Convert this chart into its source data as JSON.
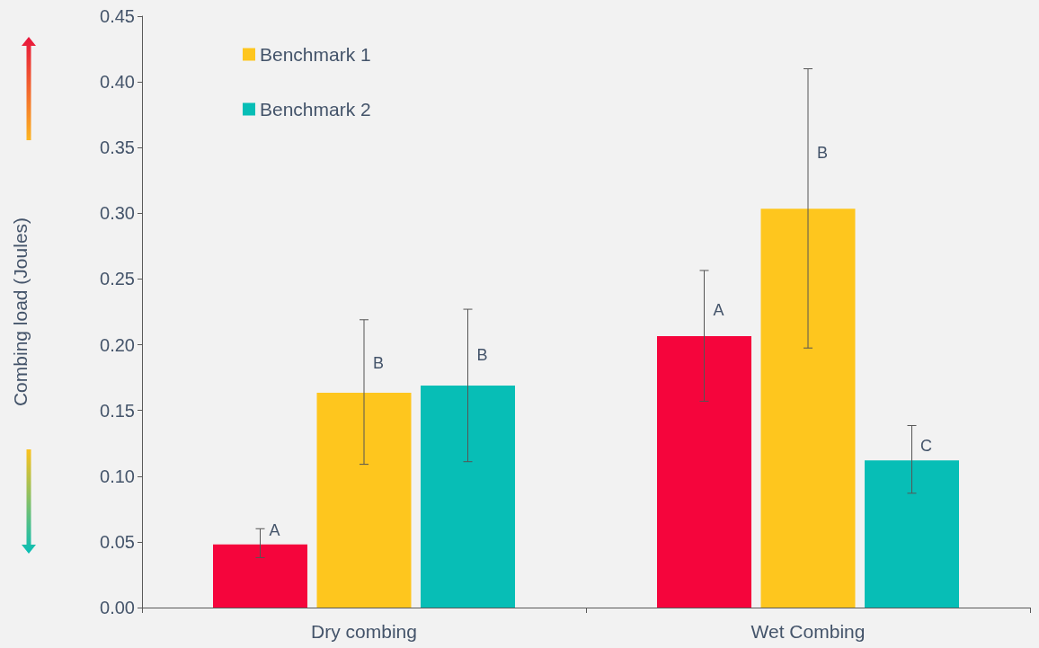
{
  "chart_data": {
    "type": "bar",
    "ylabel": "Combing load (Joules)",
    "categories": [
      "Dry combing",
      "Wet Combing"
    ],
    "series": [
      {
        "color": "#f5053c",
        "values": [
          0.048,
          0.2065
        ],
        "errors": [
          [
            0.038,
            0.06
          ],
          [
            0.157,
            0.2565
          ]
        ]
      },
      {
        "name": "Benchmark 1",
        "color": "#fec61e",
        "values": [
          0.1635,
          0.3035
        ],
        "errors": [
          [
            0.109,
            0.219
          ],
          [
            0.1975,
            0.41
          ]
        ]
      },
      {
        "name": "Benchmark 2",
        "color": "#07beb6",
        "values": [
          0.169,
          0.112
        ],
        "errors": [
          [
            0.111,
            0.227
          ],
          [
            0.087,
            0.1385
          ]
        ]
      }
    ],
    "ylim": [
      0,
      0.45
    ],
    "yticks": [
      {
        "value": 0,
        "label": "0.00"
      },
      {
        "value": 0.05,
        "label": "0.05"
      },
      {
        "value": 0.1,
        "label": "0.10"
      },
      {
        "value": 0.15,
        "label": "0.15"
      },
      {
        "value": 0.2,
        "label": "0.20"
      },
      {
        "value": 0.25,
        "label": "0.25"
      },
      {
        "value": 0.3,
        "label": "0.30"
      },
      {
        "value": 0.35,
        "label": "0.35"
      },
      {
        "value": 0.4,
        "label": "0.40"
      },
      {
        "value": 0.45,
        "label": "0.45"
      }
    ],
    "annotations": [
      "A",
      "B",
      "B",
      "A",
      "B",
      "C"
    ],
    "grid": false,
    "legend": "top left"
  }
}
